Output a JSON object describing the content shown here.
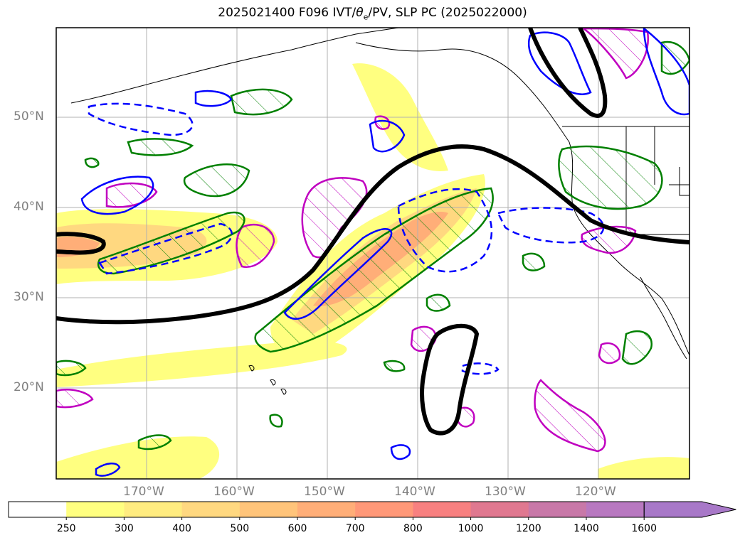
{
  "title": "2025021400 F096 IVT/θe/PV, SLP PC (2025022000)",
  "title_parts": {
    "prefix": "2025021400 F096 IVT/",
    "theta": "θ",
    "sub": "e",
    "suffix": "/PV, SLP PC (2025022000)"
  },
  "lat_labels": [
    "50°N",
    "40°N",
    "30°N",
    "20°N"
  ],
  "lon_labels": [
    "170°W",
    "160°W",
    "150°W",
    "140°W",
    "130°W",
    "120°W"
  ],
  "colorbar": {
    "ticks": [
      "250",
      "300",
      "400",
      "500",
      "600",
      "700",
      "800",
      "1000",
      "1200",
      "1400",
      "1600"
    ],
    "colors": [
      "#ffffff",
      "#ffff80",
      "#ffec80",
      "#ffd880",
      "#ffc47a",
      "#ffae78",
      "#ff9878",
      "#f88080",
      "#e07890",
      "#c878a8",
      "#b878c0",
      "#a878c8"
    ],
    "extend": "max"
  },
  "colors": {
    "slp": "#000000",
    "pv_positive": "#008000",
    "pv_negative": "#0000ff",
    "theta_e": "#c000c0",
    "coast": "#000000",
    "grid": "#b0b0b0"
  }
}
